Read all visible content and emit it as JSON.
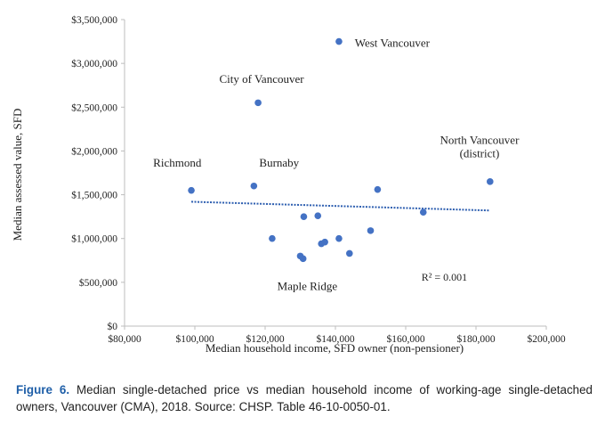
{
  "chart_data": {
    "type": "scatter",
    "xlabel": "Median household income, SFD owner (non-pensioner)",
    "ylabel": "Median assessed value, SFD",
    "xlim": [
      80000,
      200000
    ],
    "ylim": [
      0,
      3500000
    ],
    "x_ticks": [
      80000,
      100000,
      120000,
      140000,
      160000,
      180000,
      200000
    ],
    "x_tick_labels": [
      "$80,000",
      "$100,000",
      "$120,000",
      "$140,000",
      "$160,000",
      "$180,000",
      "$200,000"
    ],
    "y_ticks": [
      0,
      500000,
      1000000,
      1500000,
      2000000,
      2500000,
      3000000,
      3500000
    ],
    "y_tick_labels": [
      "$0",
      "$500,000",
      "$1,000,000",
      "$1,500,000",
      "$2,000,000",
      "$2,500,000",
      "$3,000,000",
      "$3,500,000"
    ],
    "grid": "none",
    "marker_color": "#4472c4",
    "trendline_color": "#2e5fb0",
    "points": [
      {
        "x": 99000,
        "y": 1550000
      },
      {
        "x": 116800,
        "y": 1600000
      },
      {
        "x": 118000,
        "y": 2550000
      },
      {
        "x": 141000,
        "y": 3250000
      },
      {
        "x": 184000,
        "y": 1650000
      },
      {
        "x": 122000,
        "y": 1000000
      },
      {
        "x": 130000,
        "y": 800000
      },
      {
        "x": 130800,
        "y": 770000
      },
      {
        "x": 131000,
        "y": 1250000
      },
      {
        "x": 135000,
        "y": 1260000
      },
      {
        "x": 136000,
        "y": 940000
      },
      {
        "x": 137000,
        "y": 960000
      },
      {
        "x": 141000,
        "y": 1000000
      },
      {
        "x": 144000,
        "y": 830000
      },
      {
        "x": 150000,
        "y": 1090000
      },
      {
        "x": 152000,
        "y": 1560000
      },
      {
        "x": 165000,
        "y": 1300000
      }
    ],
    "point_labels": [
      {
        "lines": [
          "West Vancouver"
        ],
        "x": 145500,
        "y": 3190000,
        "anchor": "start"
      },
      {
        "lines": [
          "City of Vancouver"
        ],
        "x": 119000,
        "y": 2780000,
        "anchor": "middle"
      },
      {
        "lines": [
          "North Vancouver",
          "(district)"
        ],
        "x": 181000,
        "y": 2080000,
        "anchor": "middle"
      },
      {
        "lines": [
          "Richmond"
        ],
        "x": 95000,
        "y": 1820000,
        "anchor": "middle"
      },
      {
        "lines": [
          "Burnaby"
        ],
        "x": 124000,
        "y": 1820000,
        "anchor": "middle"
      },
      {
        "lines": [
          "Maple Ridge"
        ],
        "x": 132000,
        "y": 410000,
        "anchor": "middle"
      }
    ],
    "trendline": {
      "x": [
        99000,
        184000
      ],
      "y": [
        1420000,
        1320000
      ]
    },
    "annotation": {
      "text": "R² = 0.001",
      "x": 164500,
      "y": 520000
    }
  },
  "caption": {
    "figure_label": "Figure 6.",
    "text": " Median single-detached price vs median household income of working-age single-detached owners, Vancouver (CMA), 2018. Source: CHSP. Table 46-10-0050-01."
  }
}
